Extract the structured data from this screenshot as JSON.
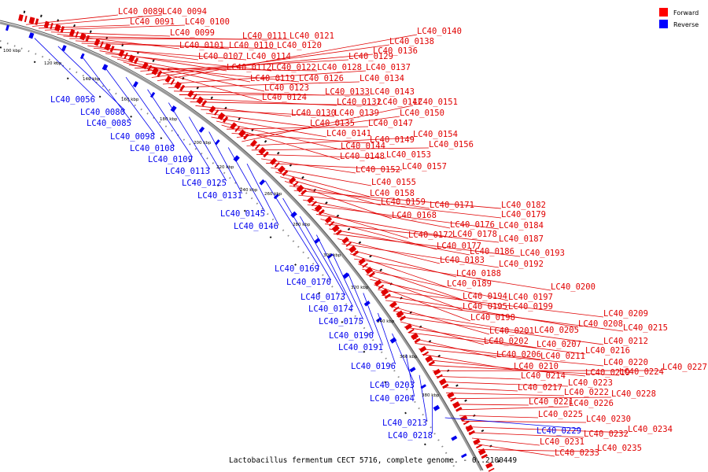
{
  "title": "Lactobacillus fermentum CECT 5716, complete genome. - 0..2100449",
  "legend": [
    {
      "label": "Forward",
      "color": "#ff0000"
    },
    {
      "label": "Reverse",
      "color": "#0000ff"
    }
  ],
  "colors": {
    "forward": "#e00000",
    "reverse": "#0000ee",
    "backbone": "#999999"
  },
  "ticks": [
    "100 kbp",
    "120 kbp",
    "140 kbp",
    "160 kbp",
    "180 kbp",
    "200 kbp",
    "220 kbp",
    "240 kbp",
    "260 kbp",
    "280 kbp",
    "300 kbp",
    "320 kbp",
    "340 kbp",
    "360 kbp",
    "380 kbp"
  ],
  "forward_labels": [
    "LC40_0089",
    "LC40_0094",
    "LC40_0091",
    "LC40_0100",
    "LC40_0099",
    "LC40_0101",
    "LC40_0111",
    "LC40_0121",
    "LC40_0110",
    "LC40_0120",
    "LC40_0107",
    "LC40_0114",
    "LC40_0112",
    "LC40_0122",
    "LC40_0119",
    "LC40_0123",
    "LC40_0124",
    "LC40_0126",
    "LC40_0128",
    "LC40_0129",
    "LC40_0136",
    "LC40_0138",
    "LC40_0140",
    "LC40_0137",
    "LC40_0134",
    "LC40_0133",
    "LC40_0143",
    "LC40_0132",
    "LC40_0142",
    "LC40_0130",
    "LC40_0139",
    "LC40_0135",
    "LC40_0141",
    "LC40_0144",
    "LC40_0148",
    "LC40_0147",
    "LC40_0149",
    "LC40_0150",
    "LC40_0151",
    "LC40_0154",
    "LC40_0156",
    "LC40_0153",
    "LC40_0152",
    "LC40_0157",
    "LC40_0155",
    "LC40_0158",
    "LC40_0159",
    "LC40_0168",
    "LC40_0171",
    "LC40_0182",
    "LC40_0179",
    "LC40_0176",
    "LC40_0184",
    "LC40_0172",
    "LC40_0178",
    "LC40_0177",
    "LC40_0187",
    "LC40_0186",
    "LC40_0193",
    "LC40_0183",
    "LC40_0192",
    "LC40_0188",
    "LC40_0189",
    "LC40_0200",
    "LC40_0194",
    "LC40_0197",
    "LC40_0195",
    "LC40_0199",
    "LC40_0198",
    "LC40_0209",
    "LC40_0208",
    "LC40_0215",
    "LC40_0201",
    "LC40_0205",
    "LC40_0212",
    "LC40_0202",
    "LC40_0207",
    "LC40_0216",
    "LC40_0206",
    "LC40_0211",
    "LC40_0220",
    "LC40_0210",
    "LC40_0219",
    "LC40_0224",
    "LC40_0227",
    "LC40_0214",
    "LC40_0223",
    "LC40_0217",
    "LC40_0222",
    "LC40_0228",
    "LC40_0221",
    "LC40_0226",
    "LC40_0225",
    "LC40_0230",
    "LC40_0234",
    "LC40_0232",
    "LC40_0231",
    "LC40_0233",
    "LC40_0235"
  ],
  "reverse_labels": [
    "LC40_0056",
    "LC40_0080",
    "LC40_0085",
    "LC40_0098",
    "LC40_0108",
    "LC40_0109",
    "LC40_0113",
    "LC40_0125",
    "LC40_0131",
    "LC40_0145",
    "LC40_0146",
    "LC40_0169",
    "LC40_0170",
    "LC40_0173",
    "LC40_0174",
    "LC40_0175",
    "LC40_0190",
    "LC40_0191",
    "LC40_0196",
    "LC40_0203",
    "LC40_0204",
    "LC40_0213",
    "LC40_0218",
    "LC40_0229"
  ]
}
